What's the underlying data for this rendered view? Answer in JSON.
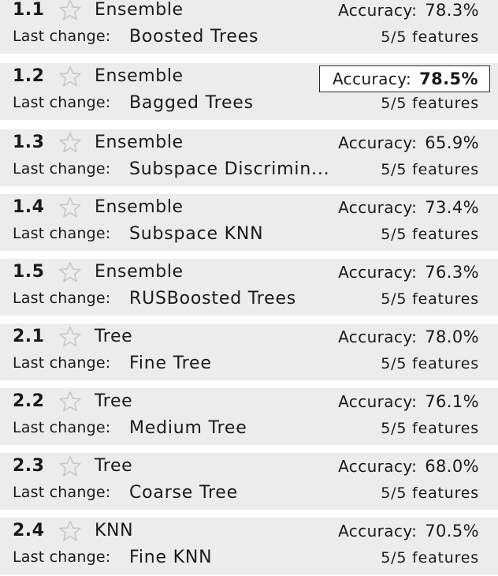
{
  "labels": {
    "accuracy": "Accuracy:",
    "last_change": "Last change:"
  },
  "colors": {
    "item_background": "#ececec",
    "separator": "#ffffff",
    "text": "#1a1a1a",
    "star_outline": "#c8c8c8",
    "best_border": "#2a2a2a"
  },
  "icons": {
    "favorite": "star-outline-icon"
  },
  "models": [
    {
      "number": "1.1",
      "type": "Ensemble",
      "accuracy": "78.3%",
      "preset": "Boosted Trees",
      "features": "5/5 features",
      "best": false
    },
    {
      "number": "1.2",
      "type": "Ensemble",
      "accuracy": "78.5%",
      "preset": "Bagged Trees",
      "features": "5/5 features",
      "best": true
    },
    {
      "number": "1.3",
      "type": "Ensemble",
      "accuracy": "65.9%",
      "preset": "Subspace Discrimin...",
      "features": "5/5 features",
      "best": false
    },
    {
      "number": "1.4",
      "type": "Ensemble",
      "accuracy": "73.4%",
      "preset": "Subspace KNN",
      "features": "5/5 features",
      "best": false
    },
    {
      "number": "1.5",
      "type": "Ensemble",
      "accuracy": "76.3%",
      "preset": "RUSBoosted Trees",
      "features": "5/5 features",
      "best": false
    },
    {
      "number": "2.1",
      "type": "Tree",
      "accuracy": "78.0%",
      "preset": "Fine Tree",
      "features": "5/5 features",
      "best": false
    },
    {
      "number": "2.2",
      "type": "Tree",
      "accuracy": "76.1%",
      "preset": "Medium Tree",
      "features": "5/5 features",
      "best": false
    },
    {
      "number": "2.3",
      "type": "Tree",
      "accuracy": "68.0%",
      "preset": "Coarse Tree",
      "features": "5/5 features",
      "best": false
    },
    {
      "number": "2.4",
      "type": "KNN",
      "accuracy": "70.5%",
      "preset": "Fine KNN",
      "features": "5/5 features",
      "best": false
    }
  ]
}
